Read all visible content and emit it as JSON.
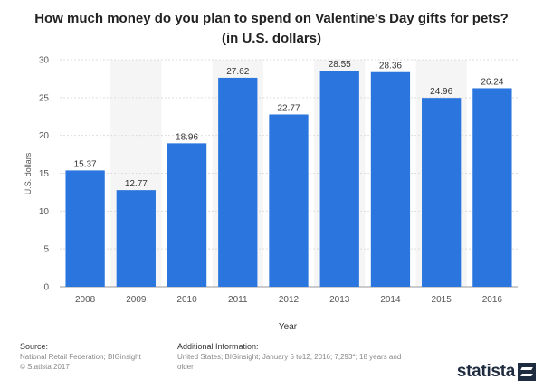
{
  "chart_data": {
    "type": "bar",
    "title": "How much money do you plan to spend on Valentine's Day gifts for pets? (in U.S. dollars)",
    "xlabel": "Year",
    "ylabel": "U.S. dollars",
    "categories": [
      "2008",
      "2009",
      "2010",
      "2011",
      "2012",
      "2013",
      "2014",
      "2015",
      "2016"
    ],
    "values": [
      15.37,
      12.77,
      18.96,
      27.62,
      22.77,
      28.55,
      28.36,
      24.96,
      26.24
    ],
    "data_labels": [
      "15.37",
      "12.77",
      "18.96",
      "27.62",
      "22.77",
      "28.55",
      "28.36",
      "24.96",
      "26.24"
    ],
    "yticks": [
      0,
      5,
      10,
      15,
      20,
      25,
      30
    ],
    "ylim": [
      0,
      30
    ],
    "grid": true,
    "bar_color": "#2a75de"
  },
  "footer": {
    "source_heading": "Source:",
    "source_line1": "National Retail Federation; BIGinsight",
    "source_line2": "© Statista 2017",
    "additional_heading": "Additional Information:",
    "additional_text": "United States; BIGinsight; January 5 to12, 2016; 7,293*; 18 years and older"
  },
  "brand": {
    "name": "statista",
    "icon": "statista-logo-icon"
  }
}
